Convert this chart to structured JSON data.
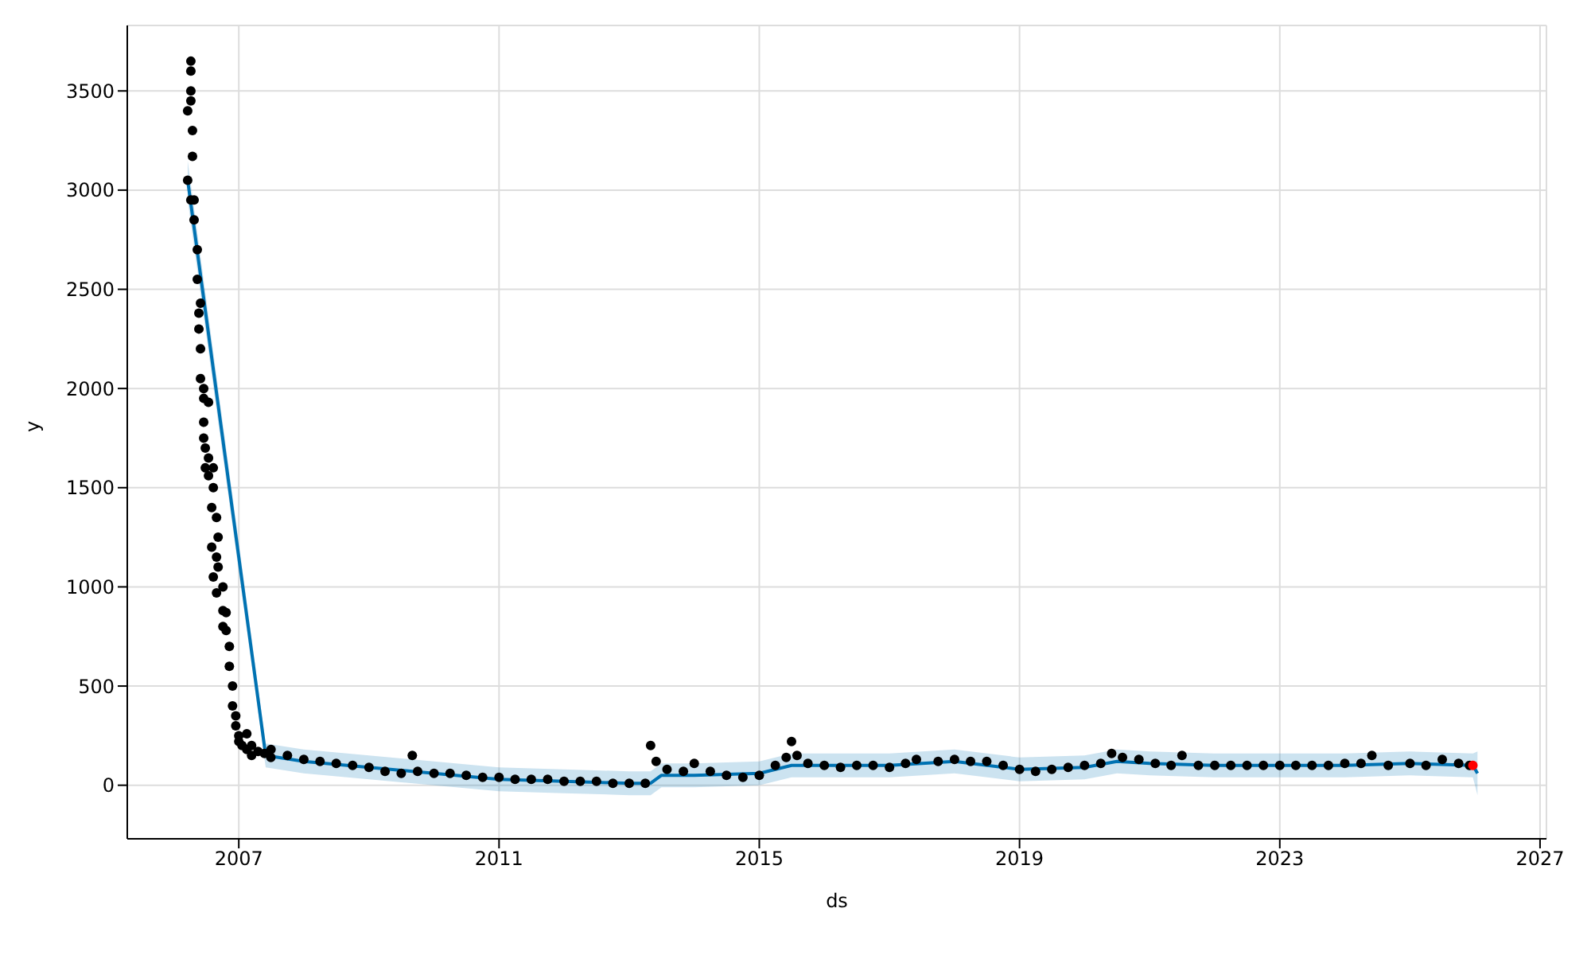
{
  "chart_data": {
    "type": "scatter",
    "xlabel": "ds",
    "ylabel": "y",
    "xlim": [
      "2005-04-15",
      "2027-02-06"
    ],
    "xticks": [
      "2007",
      "2011",
      "2015",
      "2019",
      "2023",
      "2027"
    ],
    "ylim": [
      -270,
      3830
    ],
    "yticks": [
      0,
      500,
      1000,
      1500,
      2000,
      2500,
      3000,
      3500
    ],
    "grid": true,
    "marker": "circle",
    "series": [
      {
        "color": "#000000",
        "x": [
          "2006-03-20",
          "2006-03-20",
          "2006-04-07",
          "2006-04-07",
          "2006-04-07",
          "2006-04-07",
          "2006-04-07",
          "2006-04-16",
          "2006-04-16",
          "2006-04-25",
          "2006-04-25",
          "2006-05-13",
          "2006-05-13",
          "2006-05-22",
          "2006-05-22",
          "2006-05-31",
          "2006-05-31",
          "2006-05-31",
          "2006-06-18",
          "2006-06-18",
          "2006-06-18",
          "2006-06-18",
          "2006-06-27",
          "2006-06-27",
          "2006-07-15",
          "2006-07-15",
          "2006-07-15",
          "2006-08-02",
          "2006-08-02",
          "2006-08-11",
          "2006-08-11",
          "2006-08-11",
          "2006-08-29",
          "2006-08-29",
          "2006-08-29",
          "2006-09-07",
          "2006-09-07",
          "2006-10-04",
          "2006-10-04",
          "2006-10-04",
          "2006-10-22",
          "2006-10-22",
          "2006-11-09",
          "2006-11-09",
          "2006-11-27",
          "2006-11-27",
          "2006-12-15",
          "2006-12-15",
          "2007-01-01",
          "2007-01-01",
          "2007-01-19",
          "2007-02-15",
          "2007-02-15",
          "2007-03-14",
          "2007-03-14",
          "2007-04-19",
          "2007-05-25",
          "2007-06-30",
          "2007-07",
          "2007-10",
          "2008-01",
          "2008-04",
          "2008-07",
          "2008-10",
          "2009-01",
          "2009-04",
          "2009-07",
          "2009-09",
          "2009-10",
          "2010-01",
          "2010-04",
          "2010-07",
          "2010-10",
          "2011-01",
          "2011-04",
          "2011-07",
          "2011-10",
          "2012-01",
          "2012-04",
          "2012-07",
          "2012-10",
          "2013-01",
          "2013-04",
          "2013-05",
          "2013-06",
          "2013-08",
          "2013-11",
          "2014-01",
          "2014-04",
          "2014-07",
          "2014-10",
          "2015-01",
          "2015-04",
          "2015-06",
          "2015-07",
          "2015-08",
          "2015-10",
          "2016-01",
          "2016-04",
          "2016-07",
          "2016-10",
          "2017-01",
          "2017-04",
          "2017-06",
          "2017-10",
          "2018-01",
          "2018-04",
          "2018-07",
          "2018-10",
          "2019-01",
          "2019-04",
          "2019-07",
          "2019-10",
          "2020-01",
          "2020-04",
          "2020-06",
          "2020-08",
          "2020-11",
          "2021-02",
          "2021-05",
          "2021-07",
          "2021-10",
          "2022-01",
          "2022-04",
          "2022-07",
          "2022-10",
          "2023-01",
          "2023-04",
          "2023-07",
          "2023-10",
          "2024-01",
          "2024-04",
          "2024-06",
          "2024-09",
          "2025-01",
          "2025-04",
          "2025-07",
          "2025-10",
          "2025-12"
        ],
        "values": [
          3050,
          3400,
          3650,
          3600,
          3500,
          3450,
          2950,
          3300,
          3170,
          2850,
          2950,
          2700,
          2550,
          2380,
          2300,
          2430,
          2200,
          2050,
          1950,
          2000,
          1830,
          1750,
          1700,
          1600,
          1560,
          1650,
          1930,
          1400,
          1200,
          1500,
          1600,
          1050,
          1350,
          1150,
          970,
          1250,
          1100,
          1000,
          880,
          800,
          870,
          780,
          700,
          600,
          500,
          400,
          350,
          300,
          250,
          220,
          200,
          260,
          180,
          150,
          200,
          170,
          160,
          140,
          180,
          150,
          130,
          120,
          110,
          100,
          90,
          70,
          60,
          150,
          70,
          60,
          60,
          50,
          40,
          40,
          30,
          30,
          30,
          20,
          20,
          20,
          10,
          10,
          10,
          200,
          120,
          80,
          70,
          110,
          70,
          50,
          40,
          50,
          100,
          140,
          220,
          150,
          110,
          100,
          90,
          100,
          100,
          90,
          110,
          130,
          120,
          130,
          120,
          120,
          100,
          80,
          70,
          80,
          90,
          100,
          110,
          160,
          140,
          130,
          110,
          100,
          150,
          100,
          100,
          100,
          100,
          100,
          100,
          100,
          100,
          100,
          110,
          110,
          150,
          100,
          110,
          100,
          130,
          110,
          100
        ]
      },
      {
        "type": "line",
        "marker": "none",
        "color": "#0072b2",
        "x": [
          "2006-03-20",
          "2007-06-01",
          "2008-01",
          "2009-01",
          "2010-01",
          "2011-01",
          "2012-01",
          "2013-01",
          "2013-05",
          "2013-07",
          "2014-01",
          "2015-01",
          "2015-07",
          "2016-01",
          "2017-01",
          "2018-01",
          "2019-01",
          "2020-01",
          "2020-07",
          "2021-01",
          "2022-01",
          "2023-01",
          "2024-01",
          "2025-01",
          "2025-12-20",
          "2026-01-15"
        ],
        "values": [
          3050,
          150,
          120,
          90,
          60,
          30,
          20,
          10,
          10,
          50,
          50,
          60,
          100,
          100,
          100,
          120,
          80,
          90,
          120,
          110,
          100,
          100,
          100,
          110,
          100,
          60
        ],
        "lower": [
          2950,
          90,
          60,
          30,
          0,
          -30,
          -40,
          -50,
          -50,
          -10,
          -10,
          0,
          40,
          40,
          40,
          60,
          20,
          30,
          60,
          50,
          40,
          40,
          40,
          50,
          40,
          -50
        ],
        "upper": [
          3150,
          210,
          180,
          150,
          120,
          90,
          80,
          70,
          70,
          110,
          110,
          120,
          160,
          160,
          160,
          180,
          140,
          150,
          180,
          170,
          160,
          160,
          160,
          170,
          160,
          170
        ]
      },
      {
        "color": "#ff0000",
        "x": [
          "2025-12-20"
        ],
        "values": [
          100
        ]
      }
    ]
  }
}
